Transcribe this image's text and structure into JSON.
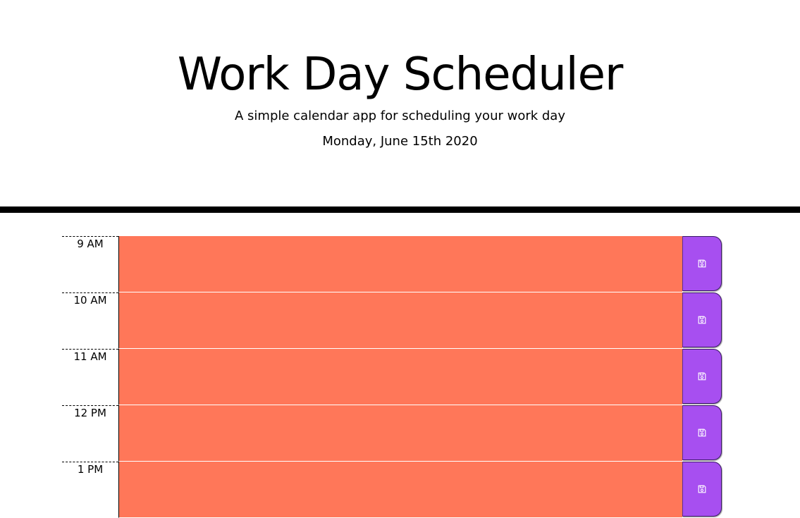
{
  "header": {
    "title": "Work Day Scheduler",
    "subtitle": "A simple calendar app for scheduling your work day",
    "current_date": "Monday, June 15th 2020"
  },
  "timeblocks": [
    {
      "hour_label": "9 AM",
      "status": "present",
      "text": "",
      "save_icon": "floppy-disk-icon"
    },
    {
      "hour_label": "10 AM",
      "status": "present",
      "text": "",
      "save_icon": "floppy-disk-icon"
    },
    {
      "hour_label": "11 AM",
      "status": "present",
      "text": "",
      "save_icon": "floppy-disk-icon"
    },
    {
      "hour_label": "12 PM",
      "status": "present",
      "text": "",
      "save_icon": "floppy-disk-icon"
    },
    {
      "hour_label": "1 PM",
      "status": "present",
      "text": "",
      "save_icon": "floppy-disk-icon"
    }
  ],
  "colors": {
    "present_block": "#ff7759",
    "save_button": "#a74ff0",
    "save_icon": "#ffffff",
    "divider": "#000000"
  }
}
